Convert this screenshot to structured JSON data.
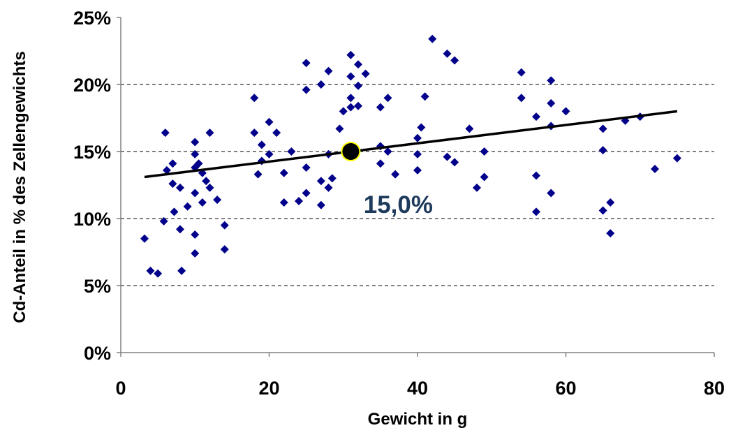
{
  "chart_data": {
    "type": "scatter",
    "xlabel": "Gewicht in g",
    "ylabel": "Cd-Anteil in % des Zellengewichts",
    "xlim": [
      0,
      80
    ],
    "ylim": [
      0,
      0.25
    ],
    "x_ticks": [
      "0",
      "20",
      "40",
      "60",
      "80"
    ],
    "y_ticks": [
      "0%",
      "5%",
      "10%",
      "15%",
      "20%",
      "25%"
    ],
    "grid": "horizontal dashed",
    "marker_color": "#00008b",
    "series": [
      {
        "points": [
          [
            3.2,
            0.085
          ],
          [
            4,
            0.061
          ],
          [
            5,
            0.059
          ],
          [
            5.8,
            0.098
          ],
          [
            6,
            0.164
          ],
          [
            6.2,
            0.136
          ],
          [
            7,
            0.141
          ],
          [
            7,
            0.126
          ],
          [
            7.2,
            0.105
          ],
          [
            8,
            0.123
          ],
          [
            8,
            0.092
          ],
          [
            8.2,
            0.061
          ],
          [
            9,
            0.109
          ],
          [
            10,
            0.157
          ],
          [
            10,
            0.148
          ],
          [
            10,
            0.138
          ],
          [
            10,
            0.119
          ],
          [
            10,
            0.088
          ],
          [
            10,
            0.074
          ],
          [
            10.5,
            0.141
          ],
          [
            11,
            0.134
          ],
          [
            11,
            0.112
          ],
          [
            11.5,
            0.128
          ],
          [
            12,
            0.164
          ],
          [
            12,
            0.123
          ],
          [
            13,
            0.114
          ],
          [
            14,
            0.095
          ],
          [
            14,
            0.077
          ],
          [
            18,
            0.19
          ],
          [
            18,
            0.164
          ],
          [
            18.5,
            0.133
          ],
          [
            19,
            0.155
          ],
          [
            19,
            0.143
          ],
          [
            20,
            0.172
          ],
          [
            20,
            0.148
          ],
          [
            21,
            0.164
          ],
          [
            22,
            0.134
          ],
          [
            22,
            0.112
          ],
          [
            23,
            0.15
          ],
          [
            24,
            0.113
          ],
          [
            25,
            0.216
          ],
          [
            25,
            0.196
          ],
          [
            25,
            0.138
          ],
          [
            25,
            0.119
          ],
          [
            27,
            0.2
          ],
          [
            27,
            0.128
          ],
          [
            27,
            0.11
          ],
          [
            28,
            0.21
          ],
          [
            28,
            0.148
          ],
          [
            28,
            0.123
          ],
          [
            28.5,
            0.13
          ],
          [
            29.5,
            0.167
          ],
          [
            30,
            0.18
          ],
          [
            31,
            0.222
          ],
          [
            31,
            0.206
          ],
          [
            31,
            0.19
          ],
          [
            31,
            0.183
          ],
          [
            32,
            0.215
          ],
          [
            32,
            0.199
          ],
          [
            32,
            0.184
          ],
          [
            33,
            0.208
          ],
          [
            35,
            0.183
          ],
          [
            35,
            0.154
          ],
          [
            35,
            0.141
          ],
          [
            36,
            0.19
          ],
          [
            36,
            0.15
          ],
          [
            37,
            0.133
          ],
          [
            40,
            0.16
          ],
          [
            40,
            0.148
          ],
          [
            40,
            0.136
          ],
          [
            40.5,
            0.168
          ],
          [
            41,
            0.191
          ],
          [
            42,
            0.234
          ],
          [
            44,
            0.223
          ],
          [
            44,
            0.146
          ],
          [
            45,
            0.218
          ],
          [
            45,
            0.142
          ],
          [
            47,
            0.167
          ],
          [
            48,
            0.123
          ],
          [
            49,
            0.15
          ],
          [
            49,
            0.131
          ],
          [
            54,
            0.209
          ],
          [
            54,
            0.19
          ],
          [
            56,
            0.176
          ],
          [
            56,
            0.132
          ],
          [
            56,
            0.105
          ],
          [
            58,
            0.203
          ],
          [
            58,
            0.186
          ],
          [
            58,
            0.169
          ],
          [
            58,
            0.119
          ],
          [
            60,
            0.18
          ],
          [
            65,
            0.167
          ],
          [
            65,
            0.151
          ],
          [
            65,
            0.106
          ],
          [
            66,
            0.112
          ],
          [
            66,
            0.089
          ],
          [
            68,
            0.173
          ],
          [
            70,
            0.176
          ],
          [
            72,
            0.137
          ],
          [
            75,
            0.145
          ]
        ]
      }
    ],
    "trendline": {
      "x": [
        3.2,
        75
      ],
      "y": [
        0.131,
        0.18
      ],
      "color": "#000000"
    },
    "highlight": {
      "x": 31,
      "y": 0.15,
      "label": "15,0%",
      "fill": "#000000",
      "stroke": "#ffff00"
    }
  }
}
